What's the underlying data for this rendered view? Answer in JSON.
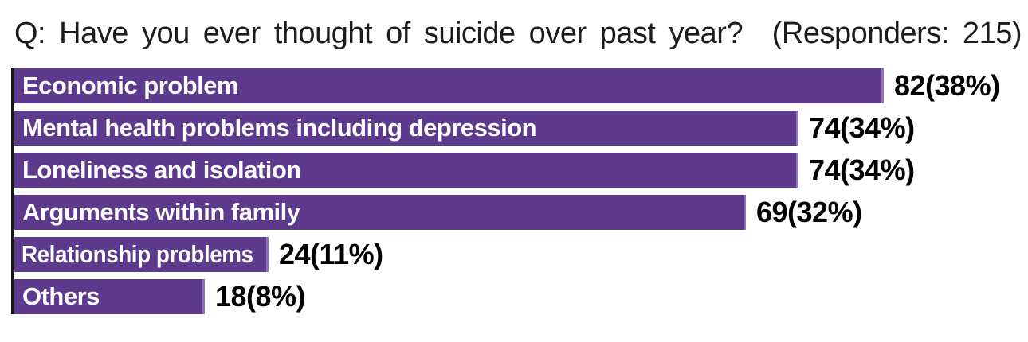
{
  "header": {
    "question": "Q: Have you ever thought of suicide over past year?",
    "responders_label": "(Responders: 215)"
  },
  "chart_data": {
    "type": "bar",
    "orientation": "horizontal",
    "title": "Q: Have you ever thought of suicide over past year?",
    "responders": 215,
    "categories": [
      "Economic problem",
      "Mental health problems including depression",
      "Loneliness and isolation",
      "Arguments within family",
      "Relationship problems",
      "Others"
    ],
    "values": [
      82,
      74,
      74,
      69,
      24,
      18
    ],
    "percentages": [
      38,
      34,
      34,
      32,
      11,
      8
    ],
    "value_labels": [
      "82(38%)",
      "74(34%)",
      "74(34%)",
      "69(32%)",
      "24(11%)",
      "18(8%)"
    ],
    "xlim": [
      0,
      96
    ],
    "grid": "off",
    "legend": "none",
    "bar_color": "#5d3a8e",
    "bar_edge_color": "#8f72b8",
    "category_label_color": "#ffffff",
    "value_label_color": "#000000",
    "axis_line_color": "#161616",
    "background_color": "#ffffff"
  }
}
